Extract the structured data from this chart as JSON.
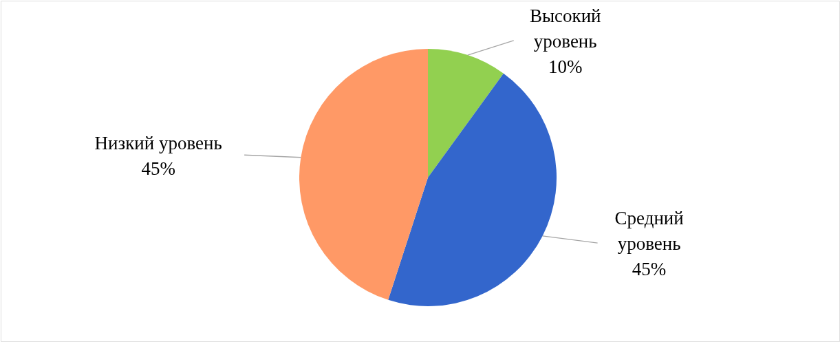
{
  "chart_data": {
    "type": "pie",
    "categories": [
      "Высокий уровень",
      "Средний уровень",
      "Низкий уровень"
    ],
    "values": [
      10,
      45,
      45
    ],
    "colors": [
      "#92d050",
      "#3366cc",
      "#ff9966"
    ],
    "value_labels": [
      "10%",
      "45%",
      "45%"
    ]
  }
}
